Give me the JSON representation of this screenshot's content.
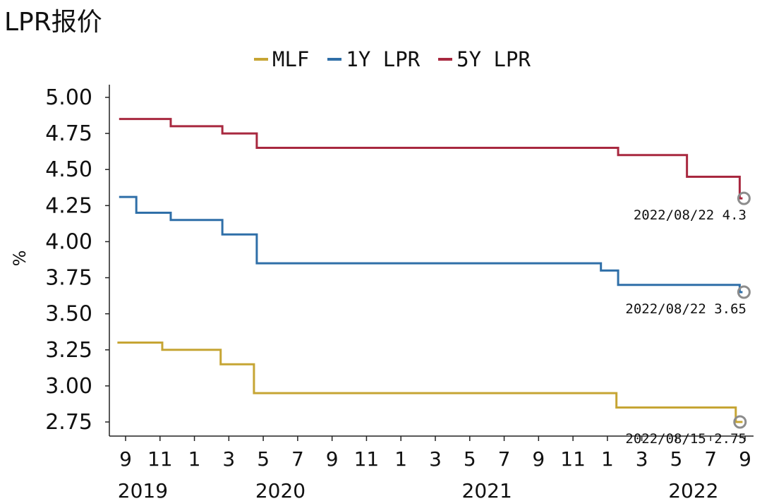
{
  "title": "LPR报价",
  "chart_data": {
    "type": "line",
    "title": "LPR报价",
    "xlabel": "",
    "ylabel": "%",
    "ylim": [
      2.7,
      5.0
    ],
    "yticks": [
      5.0,
      4.75,
      4.5,
      4.25,
      4.0,
      3.75,
      3.5,
      3.25,
      3.0,
      2.75
    ],
    "ytick_labels": [
      "5.00",
      "4.75",
      "4.50",
      "4.25",
      "4.00",
      "3.75",
      "3.50",
      "3.25",
      "3.00",
      "2.75"
    ],
    "xrange": [
      "2019-08",
      "2022-09"
    ],
    "xticks": [
      "2019-09",
      "2019-11",
      "2020-01",
      "2020-03",
      "2020-05",
      "2020-07",
      "2020-09",
      "2020-11",
      "2021-01",
      "2021-03",
      "2021-05",
      "2021-07",
      "2021-09",
      "2021-11",
      "2022-01",
      "2022-03",
      "2022-05",
      "2022-07",
      "2022-09"
    ],
    "xtick_labels": [
      "9",
      "11",
      "1",
      "3",
      "5",
      "7",
      "9",
      "11",
      "1",
      "3",
      "5",
      "7",
      "9",
      "11",
      "1",
      "3",
      "5",
      "7",
      "9"
    ],
    "year_labels": [
      {
        "label": "2019",
        "at": "2019-10"
      },
      {
        "label": "2020",
        "at": "2020-06"
      },
      {
        "label": "2021",
        "at": "2021-06"
      },
      {
        "label": "2022",
        "at": "2022-06"
      }
    ],
    "legend_position": "top",
    "grid": false,
    "series": [
      {
        "name": "MLF",
        "color": "#c6a534",
        "step": "post",
        "points": [
          [
            "2019-08-17",
            3.3
          ],
          [
            "2019-11-05",
            3.25
          ],
          [
            "2020-02-17",
            3.15
          ],
          [
            "2020-04-15",
            2.95
          ],
          [
            "2022-01-17",
            2.85
          ],
          [
            "2022-08-15",
            2.75
          ]
        ]
      },
      {
        "name": "1Y LPR",
        "color": "#2f6fa8",
        "step": "post",
        "points": [
          [
            "2019-08-20",
            4.31
          ],
          [
            "2019-09-20",
            4.2
          ],
          [
            "2019-11-20",
            4.15
          ],
          [
            "2020-02-20",
            4.05
          ],
          [
            "2020-04-20",
            3.85
          ],
          [
            "2021-12-20",
            3.8
          ],
          [
            "2022-01-20",
            3.7
          ],
          [
            "2022-08-22",
            3.65
          ]
        ]
      },
      {
        "name": "5Y LPR",
        "color": "#a8283f",
        "step": "post",
        "points": [
          [
            "2019-08-20",
            4.85
          ],
          [
            "2019-11-20",
            4.8
          ],
          [
            "2020-02-20",
            4.75
          ],
          [
            "2020-04-20",
            4.65
          ],
          [
            "2022-01-20",
            4.6
          ],
          [
            "2022-05-20",
            4.45
          ],
          [
            "2022-08-22",
            4.3
          ]
        ]
      }
    ],
    "annotations": [
      {
        "series": "5Y LPR",
        "text": "2022/08/22 4.3",
        "date": "2022-08-22",
        "value": 4.3
      },
      {
        "series": "1Y LPR",
        "text": "2022/08/22 3.65",
        "date": "2022-08-22",
        "value": 3.65
      },
      {
        "series": "MLF",
        "text": "2022/08/15 2.75",
        "date": "2022-08-15",
        "value": 2.75
      }
    ],
    "marker_color": "#8c8c8c"
  }
}
